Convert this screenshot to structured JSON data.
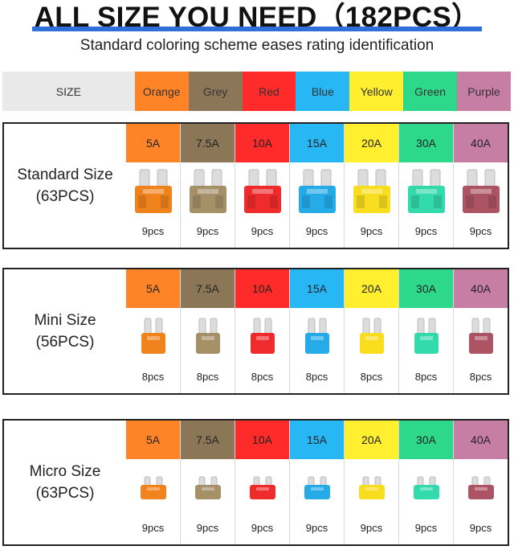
{
  "title": "ALL SIZE YOU NEED（182PCS）",
  "subtitle": "Standard coloring scheme eases rating identification",
  "header": {
    "size_label": "SIZE",
    "colors": [
      {
        "name": "Orange",
        "color": "#ff8427",
        "text": "#333333"
      },
      {
        "name": "Grey",
        "color": "#8b7658",
        "text": "#333333"
      },
      {
        "name": "Red",
        "color": "#ff2a2a",
        "text": "#333333"
      },
      {
        "name": "Blue",
        "color": "#27b7f5",
        "text": "#333333"
      },
      {
        "name": "Yellow",
        "color": "#ffef2e",
        "text": "#333333"
      },
      {
        "name": "Green",
        "color": "#2ed88a",
        "text": "#333333"
      },
      {
        "name": "Purple",
        "color": "#c77ea5",
        "text": "#333333"
      }
    ]
  },
  "fuse_colors": [
    "#f07c10",
    "#a08a60",
    "#ee2020",
    "#1aa6e8",
    "#f8dc12",
    "#28d8a6",
    "#a84a5c"
  ],
  "ratings": [
    "5A",
    "7.5A",
    "10A",
    "15A",
    "20A",
    "30A",
    "40A"
  ],
  "sections": [
    {
      "id": "standard",
      "name": "Standard Size",
      "total": "(63PCS)",
      "count": "9pcs",
      "fuse_type": "standard"
    },
    {
      "id": "mini",
      "name": "Mini Size",
      "total": "(56PCS)",
      "count": "8pcs",
      "fuse_type": "mini"
    },
    {
      "id": "micro",
      "name": "Micro Size",
      "total": "(63PCS)",
      "count": "9pcs",
      "fuse_type": "micro"
    }
  ]
}
